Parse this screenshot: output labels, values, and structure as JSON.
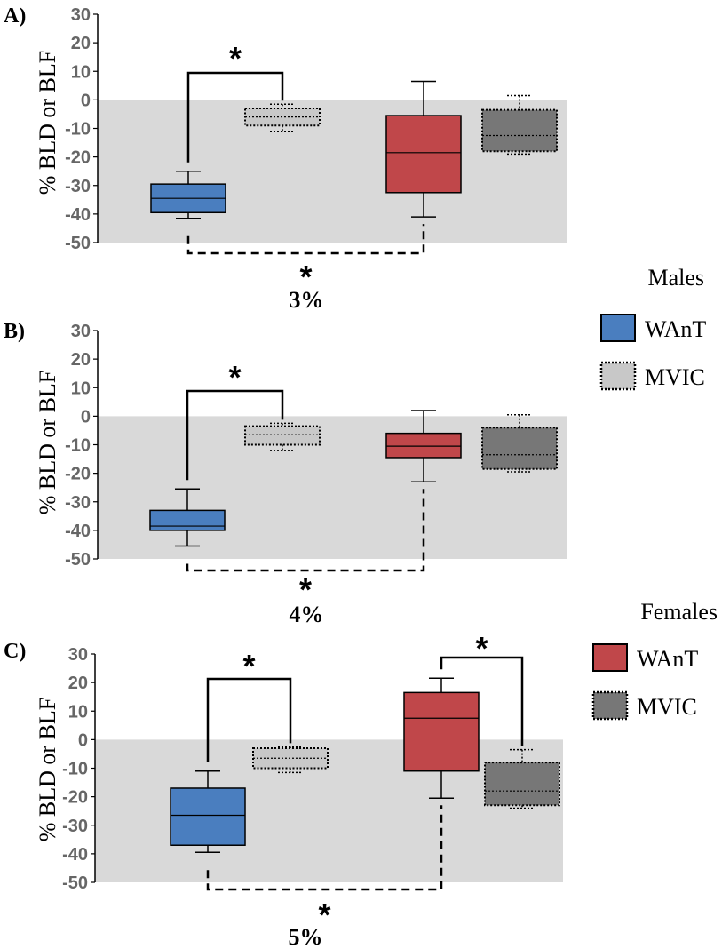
{
  "figure": {
    "legends": [
      {
        "title": "Males",
        "entries": [
          {
            "label": "WAnT",
            "color": "#4a7ebf",
            "style": "solid"
          },
          {
            "label": "MVIC",
            "color": "#c8c8c8",
            "style": "dotted"
          }
        ]
      },
      {
        "title": "Females",
        "entries": [
          {
            "label": "WAnT",
            "color": "#c0474a",
            "style": "solid"
          },
          {
            "label": "MVIC",
            "color": "#777777",
            "style": "dotted"
          }
        ]
      }
    ]
  },
  "chart_data": [
    {
      "type": "box",
      "panel": "A)",
      "ylabel": "% BLD or BLF",
      "ylim": [
        -50,
        30
      ],
      "yticks": [
        "30",
        "20",
        "10",
        "0",
        "-10",
        "-20",
        "-30",
        "-40",
        "-50"
      ],
      "shaded_range": [
        -50,
        0
      ],
      "percent_label": "3%",
      "boxes": [
        {
          "series": "Males WAnT",
          "color": "#4a7ebf",
          "style": "solid",
          "min": -41.5,
          "q1": -39.5,
          "median": -34.5,
          "q3": -29.5,
          "max": -25
        },
        {
          "series": "Males MVIC",
          "color": "#c8c8c8",
          "style": "dotted",
          "min": -11,
          "q1": -9,
          "median": -6,
          "q3": -3,
          "max": -1.5
        },
        {
          "series": "Females WAnT",
          "color": "#c0474a",
          "style": "solid",
          "min": -41,
          "q1": -32.5,
          "median": -18.5,
          "q3": -5.5,
          "max": 6.5
        },
        {
          "series": "Females MVIC",
          "color": "#777777",
          "style": "dotted",
          "min": -19,
          "q1": -18,
          "median": -12.5,
          "q3": -3.5,
          "max": 1.5
        }
      ],
      "significance": [
        {
          "label": "*",
          "from": 0,
          "to": 1,
          "position": "top",
          "dashed": false
        },
        {
          "label": "*",
          "from": 0,
          "to": 2,
          "position": "bottom",
          "dashed": true
        }
      ]
    },
    {
      "type": "box",
      "panel": "B)",
      "ylabel": "% BLD or BLF",
      "ylim": [
        -50,
        30
      ],
      "yticks": [
        "30",
        "20",
        "10",
        "0",
        "-10",
        "-20",
        "-30",
        "-40",
        "-50"
      ],
      "shaded_range": [
        -50,
        0
      ],
      "percent_label": "4%",
      "boxes": [
        {
          "series": "Males WAnT",
          "color": "#4a7ebf",
          "style": "solid",
          "min": -45.5,
          "q1": -40,
          "median": -38.5,
          "q3": -33,
          "max": -25.5
        },
        {
          "series": "Males MVIC",
          "color": "#c8c8c8",
          "style": "dotted",
          "min": -12,
          "q1": -10,
          "median": -6.5,
          "q3": -3.5,
          "max": -2.5
        },
        {
          "series": "Females WAnT",
          "color": "#c0474a",
          "style": "solid",
          "min": -23,
          "q1": -14.5,
          "median": -10.5,
          "q3": -6,
          "max": 2
        },
        {
          "series": "Females MVIC",
          "color": "#777777",
          "style": "dotted",
          "min": -19.5,
          "q1": -18.5,
          "median": -13.5,
          "q3": -4,
          "max": 0.5
        }
      ],
      "significance": [
        {
          "label": "*",
          "from": 0,
          "to": 1,
          "position": "top",
          "dashed": false
        },
        {
          "label": "*",
          "from": 0,
          "to": 2,
          "position": "bottom",
          "dashed": true
        }
      ]
    },
    {
      "type": "box",
      "panel": "C)",
      "ylabel": "% BLD or BLF",
      "ylim": [
        -50,
        30
      ],
      "yticks": [
        "30",
        "20",
        "10",
        "0",
        "-10",
        "-20",
        "-30",
        "-40",
        "-50"
      ],
      "shaded_range": [
        -50,
        0
      ],
      "percent_label": "5%",
      "boxes": [
        {
          "series": "Males WAnT",
          "color": "#4a7ebf",
          "style": "solid",
          "min": -39.5,
          "q1": -37,
          "median": -26.5,
          "q3": -17,
          "max": -11
        },
        {
          "series": "Males MVIC",
          "color": "#c8c8c8",
          "style": "dotted",
          "min": -11.5,
          "q1": -10,
          "median": -6.5,
          "q3": -3,
          "max": -2.5
        },
        {
          "series": "Females WAnT",
          "color": "#c0474a",
          "style": "solid",
          "min": -20.5,
          "q1": -11,
          "median": 7.5,
          "q3": 16.5,
          "max": 21.5
        },
        {
          "series": "Females MVIC",
          "color": "#777777",
          "style": "dotted",
          "min": -24,
          "q1": -23,
          "median": -18,
          "q3": -8,
          "max": -3.5
        }
      ],
      "significance": [
        {
          "label": "*",
          "from": 0,
          "to": 1,
          "position": "top",
          "dashed": false
        },
        {
          "label": "*",
          "from": 2,
          "to": 3,
          "position": "top",
          "dashed": false
        },
        {
          "label": "*",
          "from": 0,
          "to": 2,
          "position": "bottom",
          "dashed": true
        }
      ]
    }
  ]
}
